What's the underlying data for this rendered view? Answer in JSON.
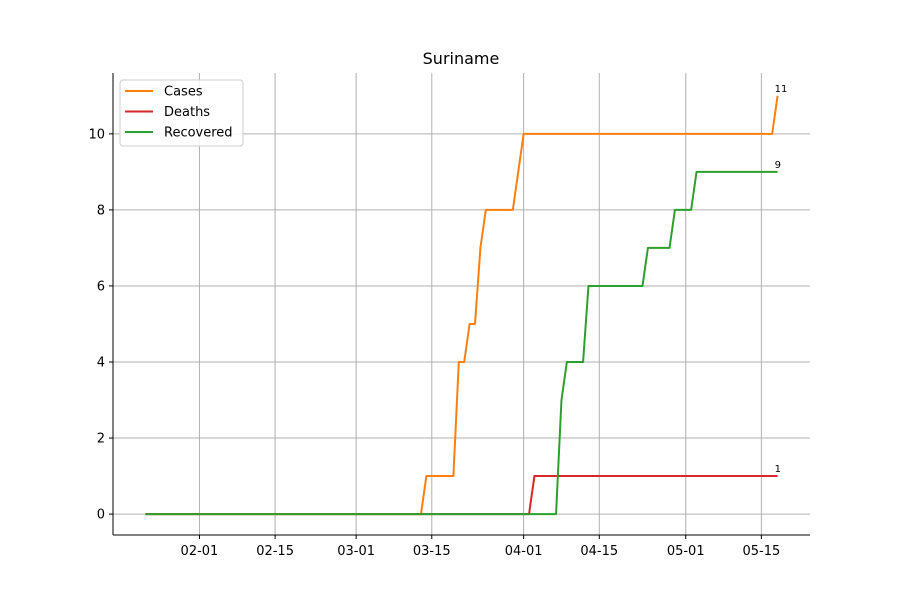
{
  "chart_data": {
    "type": "line",
    "title": "Suriname",
    "xlabel": "",
    "ylabel": "",
    "x_range": [
      "2020-01-22",
      "2020-05-18"
    ],
    "xlim": [
      "2020-01-16",
      "2020-05-24"
    ],
    "ylim": [
      -0.55,
      11.6
    ],
    "x_ticks": [
      {
        "date": "2020-02-01",
        "label": "02-01"
      },
      {
        "date": "2020-02-15",
        "label": "02-15"
      },
      {
        "date": "2020-03-01",
        "label": "03-01"
      },
      {
        "date": "2020-03-15",
        "label": "03-15"
      },
      {
        "date": "2020-04-01",
        "label": "04-01"
      },
      {
        "date": "2020-04-15",
        "label": "04-15"
      },
      {
        "date": "2020-05-01",
        "label": "05-01"
      },
      {
        "date": "2020-05-15",
        "label": "05-15"
      }
    ],
    "y_ticks": [
      0,
      2,
      4,
      6,
      8,
      10
    ],
    "grid": true,
    "legend_position": "top-left",
    "series": [
      {
        "name": "Cases",
        "color": "#ff7f0e",
        "end_label": "11",
        "points": [
          [
            "2020-01-22",
            0
          ],
          [
            "2020-03-13",
            0
          ],
          [
            "2020-03-14",
            1
          ],
          [
            "2020-03-19",
            1
          ],
          [
            "2020-03-20",
            4
          ],
          [
            "2020-03-21",
            4
          ],
          [
            "2020-03-22",
            5
          ],
          [
            "2020-03-23",
            5
          ],
          [
            "2020-03-24",
            7
          ],
          [
            "2020-03-25",
            8
          ],
          [
            "2020-03-30",
            8
          ],
          [
            "2020-04-01",
            10
          ],
          [
            "2020-05-17",
            10
          ],
          [
            "2020-05-18",
            11
          ]
        ]
      },
      {
        "name": "Deaths",
        "color": "#d62728",
        "end_label": "1",
        "points": [
          [
            "2020-01-22",
            0
          ],
          [
            "2020-04-02",
            0
          ],
          [
            "2020-04-03",
            1
          ],
          [
            "2020-05-18",
            1
          ]
        ]
      },
      {
        "name": "Recovered",
        "color": "#2ca02c",
        "end_label": "9",
        "points": [
          [
            "2020-01-22",
            0
          ],
          [
            "2020-04-07",
            0
          ],
          [
            "2020-04-08",
            3
          ],
          [
            "2020-04-09",
            4
          ],
          [
            "2020-04-12",
            4
          ],
          [
            "2020-04-13",
            6
          ],
          [
            "2020-04-23",
            6
          ],
          [
            "2020-04-24",
            7
          ],
          [
            "2020-04-28",
            7
          ],
          [
            "2020-04-29",
            8
          ],
          [
            "2020-05-02",
            8
          ],
          [
            "2020-05-03",
            9
          ],
          [
            "2020-05-18",
            9
          ]
        ]
      }
    ]
  }
}
